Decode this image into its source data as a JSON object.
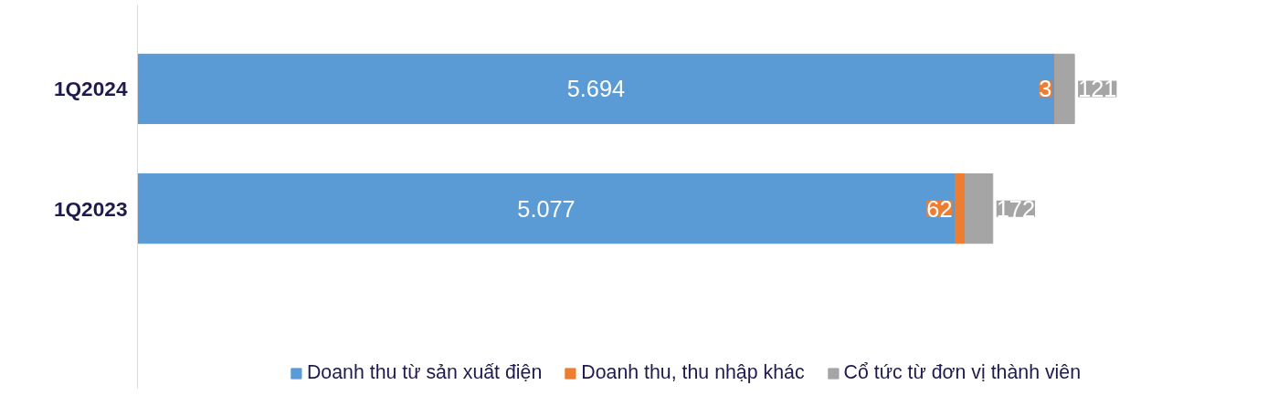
{
  "chart_data": {
    "type": "bar",
    "orientation": "horizontal",
    "stacked": true,
    "categories": [
      "1Q2024",
      "1Q2023"
    ],
    "series": [
      {
        "name": "Doanh thu từ sản xuất điện",
        "color": "#5b9bd5",
        "values": [
          5694,
          5077
        ],
        "value_labels": [
          "5.694",
          "5.077"
        ]
      },
      {
        "name": "Doanh thu, thu nhập khác",
        "color": "#ed7d31",
        "values": [
          3,
          62
        ],
        "value_labels": [
          "3",
          "62"
        ]
      },
      {
        "name": "Cổ tức từ đơn vị thành viên",
        "color": "#a5a5a5",
        "values": [
          121,
          172
        ],
        "value_labels": [
          "121",
          "172"
        ]
      }
    ],
    "legend": "bottom"
  }
}
